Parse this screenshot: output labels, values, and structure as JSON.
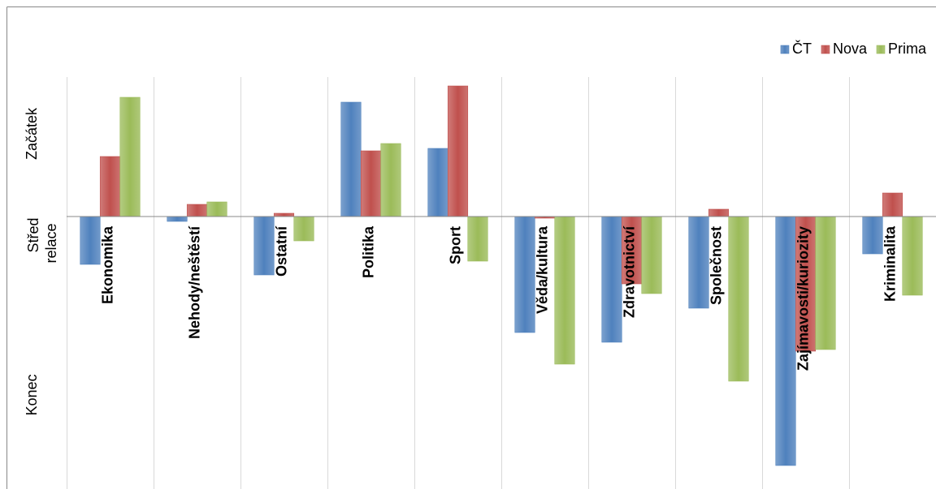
{
  "chart_data": {
    "type": "bar",
    "y_axis_labels": [
      "Začátek",
      "Střed",
      "relace",
      "Konec"
    ],
    "categories": [
      "Ekonomika",
      "Nehody/neštěstí",
      "Ostatní",
      "Politika",
      "Sport",
      "Věda/kultura",
      "Zdravotnictví",
      "Společnost",
      "Zajímavosti/kuriozity",
      "Kriminalita"
    ],
    "series": [
      {
        "name": "ČT",
        "color": "#4f81bd",
        "values": [
          -0.59,
          -0.06,
          -0.72,
          1.41,
          0.84,
          -1.43,
          -1.55,
          -1.13,
          -3.07,
          -0.46
        ]
      },
      {
        "name": "Nova",
        "color": "#c0504d",
        "values": [
          0.74,
          0.15,
          0.04,
          0.81,
          1.61,
          -0.02,
          -0.83,
          0.09,
          -1.66,
          0.29
        ]
      },
      {
        "name": "Prima",
        "color": "#9bbb59",
        "values": [
          1.47,
          0.18,
          -0.3,
          0.9,
          -0.55,
          -1.82,
          -0.95,
          -2.03,
          -1.64,
          -0.97
        ]
      }
    ],
    "ylim": [
      -3.36,
      1.72
    ],
    "grid": true,
    "legend": "top-right"
  }
}
